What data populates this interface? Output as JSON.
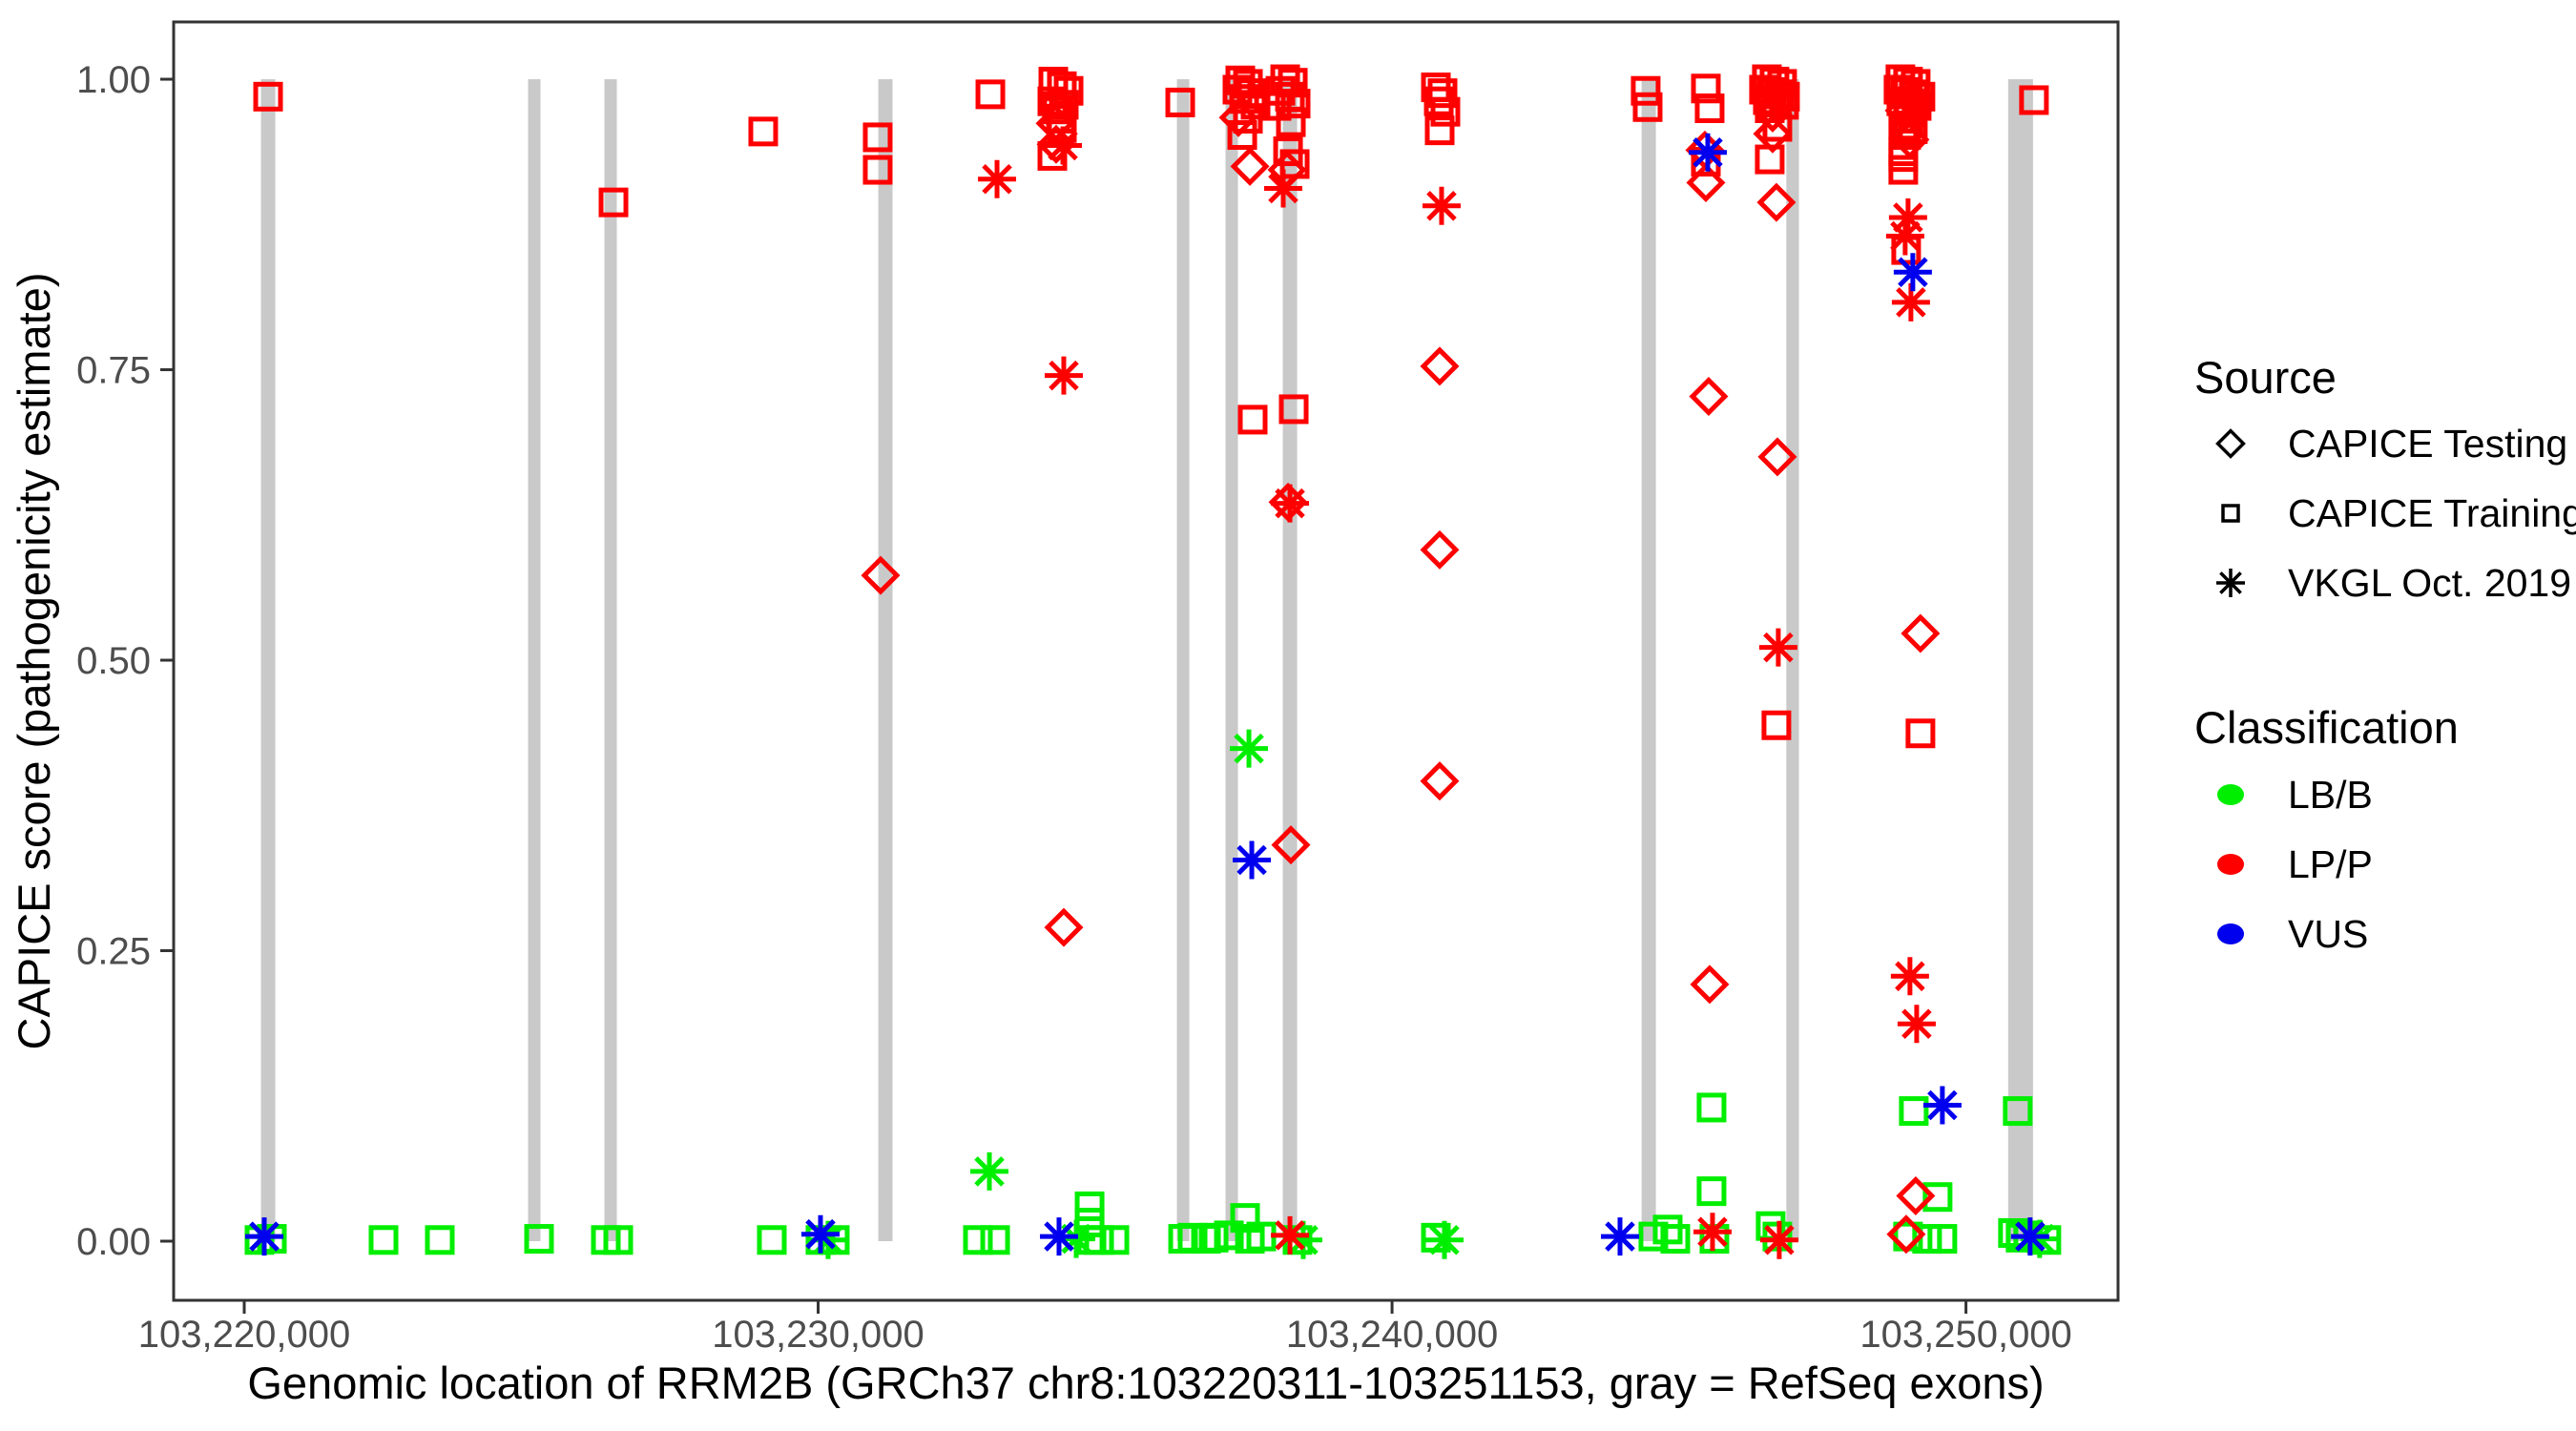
{
  "figure": {
    "kind": "ggplot-style scatter plot",
    "background": "#ffffff"
  },
  "colors": {
    "LB/B": "#00ee00",
    "LP/P": "#ff0000",
    "VUS": "#0000ee",
    "exon": "#c9c9c9",
    "panel_border": "#333333",
    "tick_mark": "#333333",
    "tick_text": "#4d4d4d",
    "legend_key": "#000000"
  },
  "legend": {
    "source": {
      "title": "Source",
      "items": [
        {
          "label": "CAPICE Testing",
          "symbol": "diamond-outline"
        },
        {
          "label": "CAPICE Training",
          "symbol": "square-outline"
        },
        {
          "label": "VKGL Oct. 2019",
          "symbol": "asterisk"
        }
      ]
    },
    "classification": {
      "title": "Classification",
      "items": [
        {
          "label": "LB/B",
          "color": "#00ee00"
        },
        {
          "label": "LP/P",
          "color": "#ff0000"
        },
        {
          "label": "VUS",
          "color": "#0000ee"
        }
      ]
    }
  },
  "chart_data": {
    "type": "scatter",
    "title": "",
    "xlabel": "Genomic location of RRM2B (GRCh37 chr8:103220311-103251153, gray = RefSeq exons)",
    "ylabel": "CAPICE score (pathogenicity estimate)",
    "xlim": [
      103218770,
      103252650
    ],
    "ylim": [
      -0.0509,
      1.0493
    ],
    "grid": false,
    "legend_position": "right",
    "x_ticks": [
      [
        103220000,
        "103,220,000"
      ],
      [
        103230000,
        "103,230,000"
      ],
      [
        103240000,
        "103,240,000"
      ],
      [
        103250000,
        "103,250,000"
      ]
    ],
    "y_ticks": [
      [
        0.0,
        "0.00"
      ],
      [
        0.25,
        "0.25"
      ],
      [
        0.5,
        "0.50"
      ],
      [
        0.75,
        "0.75"
      ],
      [
        1.0,
        "1.00"
      ]
    ],
    "exons_note": "gray vertical bars = RefSeq exons, drawn from score 0 to 1",
    "exons": [
      [
        103220292,
        103220541
      ],
      [
        103224946,
        103225162
      ],
      [
        103226276,
        103226492
      ],
      [
        103231048,
        103231297
      ],
      [
        103236251,
        103236467
      ],
      [
        103237099,
        103237315
      ],
      [
        103238097,
        103238346
      ],
      [
        103244348,
        103244597
      ],
      [
        103246870,
        103247090
      ],
      [
        103250735,
        103251168
      ]
    ],
    "point_format": [
      "source (testing=diamond, training=square, vkgl=asterisk)",
      "classification",
      "genomic_position",
      "capice_score"
    ],
    "points": [
      [
        "training",
        "LP/P",
        103220416,
        0.985
      ],
      [
        "vkgl",
        "VUS",
        103220349,
        0.004
      ],
      [
        "training",
        "LB/B",
        103220482,
        0.002
      ],
      [
        "training",
        "LB/B",
        103220266,
        0.001
      ],
      [
        "training",
        "LB/B",
        103222427,
        0.001
      ],
      [
        "training",
        "LB/B",
        103223408,
        0.001
      ],
      [
        "training",
        "LB/B",
        103225137,
        0.002
      ],
      [
        "training",
        "LB/B",
        103226301,
        0.001
      ],
      [
        "training",
        "LB/B",
        103226517,
        0.001
      ],
      [
        "training",
        "LP/P",
        103226434,
        0.894
      ],
      [
        "training",
        "LP/P",
        103229043,
        0.955
      ],
      [
        "training",
        "LB/B",
        103229193,
        0.001
      ],
      [
        "training",
        "LP/P",
        103231038,
        0.95
      ],
      [
        "training",
        "LP/P",
        103231038,
        0.922
      ],
      [
        "testing",
        "LP/P",
        103231088,
        0.573
      ],
      [
        "vkgl",
        "VUS",
        103230041,
        0.006
      ],
      [
        "vkgl",
        "LB/B",
        103230174,
        0.001
      ],
      [
        "training",
        "LB/B",
        103230290,
        0.001
      ],
      [
        "training",
        "LB/B",
        103230041,
        0.001
      ],
      [
        "training",
        "LB/B",
        103232784,
        0.001
      ],
      [
        "training",
        "LB/B",
        103233084,
        0.001
      ],
      [
        "training",
        "LP/P",
        103233001,
        0.987
      ],
      [
        "vkgl",
        "LP/P",
        103233117,
        0.914
      ],
      [
        "vkgl",
        "LB/B",
        103232984,
        0.06
      ],
      [
        "training",
        "LP/P",
        103234098,
        0.998
      ],
      [
        "training",
        "LP/P",
        103234247,
        0.994
      ],
      [
        "training",
        "LP/P",
        103234364,
        0.99
      ],
      [
        "training",
        "LP/P",
        103234081,
        0.981
      ],
      [
        "training",
        "LP/P",
        103234280,
        0.978
      ],
      [
        "training",
        "LP/P",
        103234164,
        0.974
      ],
      [
        "training",
        "LP/P",
        103234231,
        0.966
      ],
      [
        "testing",
        "LP/P",
        103234131,
        0.962
      ],
      [
        "training",
        "LP/P",
        103234247,
        0.958
      ],
      [
        "testing",
        "LP/P",
        103234147,
        0.944
      ],
      [
        "vkgl",
        "LP/P",
        103234264,
        0.943
      ],
      [
        "training",
        "LP/P",
        103234081,
        0.934
      ],
      [
        "vkgl",
        "LP/P",
        103234280,
        0.745
      ],
      [
        "testing",
        "LP/P",
        103234280,
        0.27
      ],
      [
        "training",
        "LB/B",
        103234730,
        0.03
      ],
      [
        "training",
        "LB/B",
        103234730,
        0.016
      ],
      [
        "vkgl",
        "VUS",
        103234197,
        0.004
      ],
      [
        "vkgl",
        "LB/B",
        103234497,
        0.002
      ],
      [
        "training",
        "LB/B",
        103234763,
        0.001
      ],
      [
        "training",
        "LB/B",
        103234896,
        0.001
      ],
      [
        "training",
        "LB/B",
        103235162,
        0.001
      ],
      [
        "training",
        "LP/P",
        103236309,
        0.98
      ],
      [
        "training",
        "LB/B",
        103236359,
        0.002
      ],
      [
        "training",
        "LB/B",
        103236525,
        0.003
      ],
      [
        "training",
        "LB/B",
        103236758,
        0.002
      ],
      [
        "training",
        "LP/P",
        103237356,
        0.999
      ],
      [
        "training",
        "LP/P",
        103237489,
        0.996
      ],
      [
        "training",
        "LP/P",
        103237306,
        0.991
      ],
      [
        "training",
        "LP/P",
        103237556,
        0.988
      ],
      [
        "training",
        "LP/P",
        103237423,
        0.983
      ],
      [
        "training",
        "LP/P",
        103237622,
        0.978
      ],
      [
        "testing",
        "LP/P",
        103237323,
        0.967
      ],
      [
        "training",
        "LP/P",
        103237489,
        0.966
      ],
      [
        "training",
        "LP/P",
        103237390,
        0.952
      ],
      [
        "testing",
        "LP/P",
        103237523,
        0.925
      ],
      [
        "training",
        "LP/P",
        103237572,
        0.707
      ],
      [
        "vkgl",
        "LB/B",
        103237506,
        0.424
      ],
      [
        "vkgl",
        "VUS",
        103237556,
        0.328
      ],
      [
        "training",
        "LB/B",
        103236891,
        0.003
      ],
      [
        "training",
        "LB/B",
        103237157,
        0.005
      ],
      [
        "training",
        "LB/B",
        103237439,
        0.02
      ],
      [
        "training",
        "LB/B",
        103237523,
        0.002
      ],
      [
        "training",
        "LB/B",
        103237722,
        0.004
      ],
      [
        "training",
        "LP/P",
        103238138,
        1.0
      ],
      [
        "training",
        "LP/P",
        103238271,
        0.997
      ],
      [
        "training",
        "LP/P",
        103238055,
        0.99
      ],
      [
        "training",
        "LP/P",
        103238221,
        0.985
      ],
      [
        "training",
        "LP/P",
        103238320,
        0.979
      ],
      [
        "training",
        "LP/P",
        103237988,
        0.977
      ],
      [
        "training",
        "LP/P",
        103238237,
        0.963
      ],
      [
        "training",
        "LP/P",
        103238188,
        0.938
      ],
      [
        "training",
        "LP/P",
        103238304,
        0.927
      ],
      [
        "testing",
        "LP/P",
        103238171,
        0.922
      ],
      [
        "vkgl",
        "LP/P",
        103238104,
        0.906
      ],
      [
        "training",
        "LP/P",
        103238287,
        0.716
      ],
      [
        "testing",
        "LP/P",
        103238188,
        0.636
      ],
      [
        "vkgl",
        "LP/P",
        103238221,
        0.635
      ],
      [
        "testing",
        "LP/P",
        103238237,
        0.341
      ],
      [
        "vkgl",
        "LP/P",
        103238221,
        0.005
      ],
      [
        "training",
        "LB/B",
        103238353,
        0.001
      ],
      [
        "vkgl",
        "LB/B",
        103238453,
        0.001
      ],
      [
        "training",
        "LP/P",
        103240764,
        0.993
      ],
      [
        "training",
        "LP/P",
        103240880,
        0.988
      ],
      [
        "training",
        "LP/P",
        103240814,
        0.981
      ],
      [
        "training",
        "LP/P",
        103240930,
        0.972
      ],
      [
        "training",
        "LP/P",
        103240830,
        0.956
      ],
      [
        "vkgl",
        "LP/P",
        103240863,
        0.891
      ],
      [
        "testing",
        "LP/P",
        103240830,
        0.753
      ],
      [
        "testing",
        "LP/P",
        103240830,
        0.595
      ],
      [
        "testing",
        "LP/P",
        103240830,
        0.396
      ],
      [
        "training",
        "LB/B",
        103240764,
        0.003
      ],
      [
        "vkgl",
        "LB/B",
        103240913,
        0.001
      ],
      [
        "training",
        "LP/P",
        103244420,
        0.99
      ],
      [
        "training",
        "LP/P",
        103244454,
        0.976
      ],
      [
        "vkgl",
        "VUS",
        103243972,
        0.004
      ],
      [
        "training",
        "LB/B",
        103244553,
        0.004
      ],
      [
        "training",
        "LB/B",
        103244803,
        0.01
      ],
      [
        "training",
        "LB/B",
        103244936,
        0.002
      ],
      [
        "training",
        "LP/P",
        103245468,
        0.992
      ],
      [
        "training",
        "LP/P",
        103245534,
        0.975
      ],
      [
        "testing",
        "LP/P",
        103245451,
        0.939
      ],
      [
        "vkgl",
        "VUS",
        103245501,
        0.937
      ],
      [
        "training",
        "LP/P",
        103245468,
        0.929
      ],
      [
        "testing",
        "LP/P",
        103245468,
        0.911
      ],
      [
        "testing",
        "LP/P",
        103245517,
        0.727
      ],
      [
        "testing",
        "LP/P",
        103245534,
        0.221
      ],
      [
        "training",
        "LB/B",
        103245567,
        0.115
      ],
      [
        "training",
        "LB/B",
        103245567,
        0.043
      ],
      [
        "vkgl",
        "LP/P",
        103245584,
        0.008
      ],
      [
        "training",
        "LB/B",
        103245617,
        0.002
      ],
      [
        "training",
        "LP/P",
        103246531,
        1.0
      ],
      [
        "training",
        "LP/P",
        103246664,
        0.998
      ],
      [
        "training",
        "LP/P",
        103246797,
        0.996
      ],
      [
        "training",
        "LP/P",
        103246481,
        0.991
      ],
      [
        "training",
        "LP/P",
        103246614,
        0.989
      ],
      [
        "training",
        "LP/P",
        103246747,
        0.987
      ],
      [
        "training",
        "LP/P",
        103246847,
        0.985
      ],
      [
        "training",
        "LP/P",
        103246548,
        0.982
      ],
      [
        "training",
        "LP/P",
        103246697,
        0.98
      ],
      [
        "training",
        "LP/P",
        103246830,
        0.978
      ],
      [
        "training",
        "LP/P",
        103246581,
        0.975
      ],
      [
        "testing",
        "LP/P",
        103246631,
        0.971
      ],
      [
        "training",
        "LP/P",
        103246714,
        0.959
      ],
      [
        "testing",
        "LP/P",
        103246631,
        0.953
      ],
      [
        "training",
        "LP/P",
        103246581,
        0.931
      ],
      [
        "testing",
        "LP/P",
        103246697,
        0.894
      ],
      [
        "testing",
        "LP/P",
        103246714,
        0.675
      ],
      [
        "vkgl",
        "LP/P",
        103246730,
        0.511
      ],
      [
        "training",
        "LP/P",
        103246697,
        0.444
      ],
      [
        "training",
        "LB/B",
        103246597,
        0.013
      ],
      [
        "training",
        "LB/B",
        103246714,
        0.004
      ],
      [
        "vkgl",
        "LP/P",
        103246747,
        0.001
      ],
      [
        "training",
        "LP/P",
        103248858,
        1.0
      ],
      [
        "training",
        "LP/P",
        103248991,
        0.998
      ],
      [
        "training",
        "LP/P",
        103249124,
        0.996
      ],
      [
        "training",
        "LP/P",
        103248825,
        0.991
      ],
      [
        "training",
        "LP/P",
        103248941,
        0.989
      ],
      [
        "training",
        "LP/P",
        103249091,
        0.987
      ],
      [
        "training",
        "LP/P",
        103249207,
        0.985
      ],
      [
        "training",
        "LP/P",
        103248875,
        0.981
      ],
      [
        "training",
        "LP/P",
        103249008,
        0.979
      ],
      [
        "training",
        "LP/P",
        103249141,
        0.977
      ],
      [
        "testing",
        "LP/P",
        103248925,
        0.973
      ],
      [
        "vkgl",
        "LP/P",
        103249058,
        0.971
      ],
      [
        "training",
        "LP/P",
        103248991,
        0.966
      ],
      [
        "training",
        "LP/P",
        103248908,
        0.96
      ],
      [
        "training",
        "LP/P",
        103249074,
        0.957
      ],
      [
        "training",
        "LP/P",
        103248958,
        0.952
      ],
      [
        "testing",
        "LP/P",
        103249024,
        0.948
      ],
      [
        "training",
        "LP/P",
        103248908,
        0.938
      ],
      [
        "training",
        "LP/P",
        103248908,
        0.933
      ],
      [
        "training",
        "LP/P",
        103248908,
        0.922
      ],
      [
        "vkgl",
        "LP/P",
        103248991,
        0.881
      ],
      [
        "vkgl",
        "LP/P",
        103248941,
        0.865
      ],
      [
        "training",
        "LP/P",
        103248958,
        0.853
      ],
      [
        "vkgl",
        "VUS",
        103249074,
        0.834
      ],
      [
        "vkgl",
        "LP/P",
        103249041,
        0.808
      ],
      [
        "testing",
        "LP/P",
        103249207,
        0.523
      ],
      [
        "training",
        "LP/P",
        103249207,
        0.437
      ],
      [
        "vkgl",
        "LP/P",
        103249024,
        0.228
      ],
      [
        "vkgl",
        "LP/P",
        103249141,
        0.187
      ],
      [
        "training",
        "LB/B",
        103249091,
        0.112
      ],
      [
        "vkgl",
        "VUS",
        103249589,
        0.117
      ],
      [
        "testing",
        "LP/P",
        103249124,
        0.039
      ],
      [
        "training",
        "LB/B",
        103249506,
        0.038
      ],
      [
        "testing",
        "LP/P",
        103248958,
        0.006
      ],
      [
        "training",
        "LB/B",
        103248991,
        0.004
      ],
      [
        "training",
        "LB/B",
        103249323,
        0.002
      ],
      [
        "training",
        "LB/B",
        103249589,
        0.002
      ],
      [
        "training",
        "LP/P",
        103251185,
        0.982
      ],
      [
        "training",
        "LB/B",
        103250902,
        0.112
      ],
      [
        "training",
        "LB/B",
        103250819,
        0.007
      ],
      [
        "training",
        "LB/B",
        103250952,
        0.003
      ],
      [
        "training",
        "LB/B",
        103251085,
        0.005
      ],
      [
        "vkgl",
        "VUS",
        103251118,
        0.004
      ],
      [
        "vkgl",
        "LB/B",
        103251284,
        0.002
      ],
      [
        "training",
        "LB/B",
        103251401,
        0.001
      ]
    ]
  }
}
